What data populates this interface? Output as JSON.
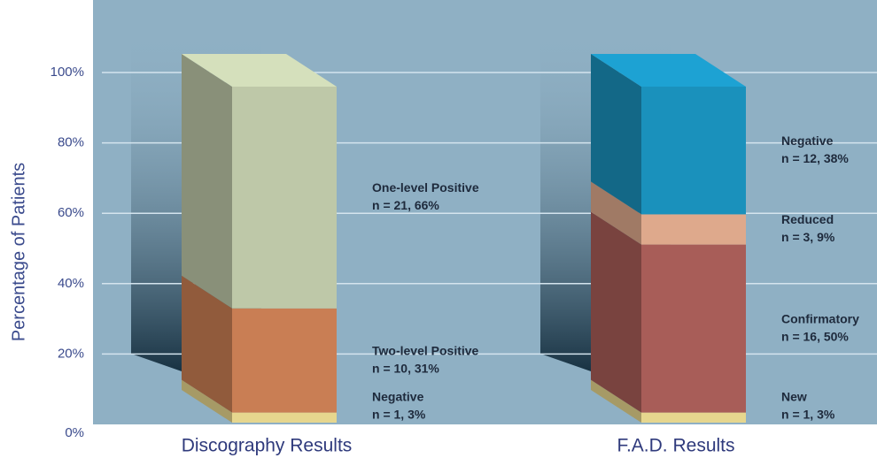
{
  "chart_data": {
    "type": "stacked-bar-3d",
    "y_label": "Percentage of Patients",
    "ylim": [
      0,
      100
    ],
    "yticks": [
      {
        "value": 0,
        "label": "0%"
      },
      {
        "value": 20,
        "label": "20%"
      },
      {
        "value": 40,
        "label": "40%"
      },
      {
        "value": 60,
        "label": "60%"
      },
      {
        "value": 80,
        "label": "80%"
      },
      {
        "value": 100,
        "label": "100%"
      }
    ],
    "grid": true,
    "stacks": [
      {
        "category": "Discography Results",
        "segments": [
          {
            "name": "Negative",
            "value": 3,
            "value_label": "n = 1, 3%",
            "color": "#e6d68e"
          },
          {
            "name": "Two-level Positive",
            "value": 31,
            "value_label": "n = 10, 31%",
            "color": "#c97e54"
          },
          {
            "name": "One-level Positive",
            "value": 66,
            "value_label": "n = 21, 66%",
            "color": "#bec8a8"
          }
        ]
      },
      {
        "category": "F.A.D. Results",
        "segments": [
          {
            "name": "New",
            "value": 3,
            "value_label": "n = 1, 3%",
            "color": "#e6d68e"
          },
          {
            "name": "Confirmatory",
            "value": 50,
            "value_label": "n = 16, 50%",
            "color": "#a85d58"
          },
          {
            "name": "Reduced",
            "value": 9,
            "value_label": "n = 3, 9%",
            "color": "#dea98c"
          },
          {
            "name": "Negative",
            "value": 38,
            "value_label": "n = 12, 38%",
            "color": "#1a91bc"
          }
        ]
      }
    ]
  }
}
